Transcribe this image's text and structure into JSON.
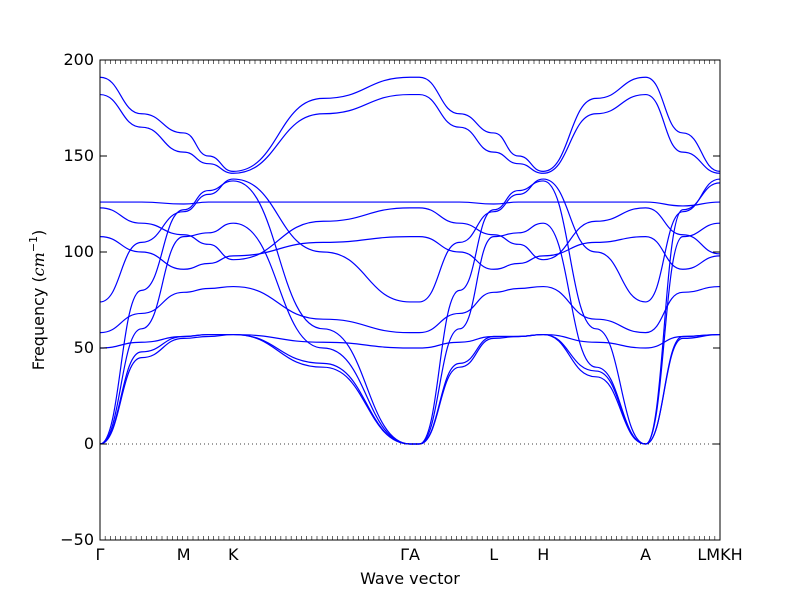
{
  "chart_data": {
    "type": "line",
    "title": "",
    "xlabel": "Wave vector",
    "ylabel": "Frequency (cm⁻¹)",
    "ylabel_parts": {
      "prefix": "Frequency (",
      "unit": "cm",
      "exponent": "−1",
      "suffix": ")"
    },
    "ylim": [
      -50,
      200
    ],
    "yticks": [
      -50,
      0,
      50,
      100,
      150,
      200
    ],
    "ytick_labels": [
      "−50",
      "0",
      "50",
      "100",
      "150",
      "200"
    ],
    "xlim": [
      0,
      1
    ],
    "xticks": [
      {
        "pos": 0.0,
        "label": "Γ"
      },
      {
        "pos": 0.135,
        "label": "M"
      },
      {
        "pos": 0.215,
        "label": "K"
      },
      {
        "pos": 0.5,
        "label": "ΓA"
      },
      {
        "pos": 0.635,
        "label": "L"
      },
      {
        "pos": 0.715,
        "label": "H"
      },
      {
        "pos": 0.88,
        "label": "A"
      },
      {
        "pos": 1.0,
        "label": "LMKH"
      }
    ],
    "zero_line": {
      "y": 0,
      "style": "dotted"
    },
    "line_color": "#0000ff",
    "grid": false,
    "legend": "none",
    "series_points_note_x": [
      0,
      0.067,
      0.135,
      0.175,
      0.215,
      0.36,
      0.5,
      0.515,
      0.58,
      0.635,
      0.675,
      0.715,
      0.8,
      0.88,
      0.94,
      1.0
    ],
    "x_per_segment_samples": [
      0,
      0.135,
      0.215,
      0.5,
      0.635,
      0.715,
      0.88,
      1.0
    ],
    "series": [
      {
        "values": [
          0,
          45,
          55,
          56,
          57,
          40,
          0,
          0,
          40,
          55,
          56,
          57,
          35,
          0,
          55,
          57
        ]
      },
      {
        "values": [
          0,
          48,
          56,
          57,
          57,
          42,
          0,
          0,
          42,
          56,
          56,
          57,
          38,
          0,
          56,
          57
        ]
      },
      {
        "values": [
          50,
          53,
          56,
          57,
          57,
          53,
          50,
          50,
          53,
          56,
          56,
          57,
          53,
          50,
          56,
          57
        ]
      },
      {
        "values": [
          58,
          68,
          79,
          81,
          82,
          65,
          58,
          58,
          68,
          79,
          81,
          82,
          65,
          58,
          79,
          82
        ]
      },
      {
        "values": [
          0,
          60,
          108,
          110,
          115,
          50,
          0,
          0,
          60,
          108,
          110,
          115,
          40,
          0,
          108,
          115
        ]
      },
      {
        "values": [
          74,
          105,
          121,
          130,
          138,
          100,
          74,
          74,
          105,
          121,
          130,
          138,
          100,
          74,
          121,
          138
        ]
      },
      {
        "values": [
          0,
          80,
          122,
          132,
          137,
          60,
          0,
          0,
          80,
          122,
          132,
          137,
          60,
          0,
          122,
          136
        ]
      },
      {
        "values": [
          108,
          100,
          91,
          94,
          98,
          105,
          108,
          108,
          100,
          91,
          94,
          98,
          105,
          108,
          91,
          98
        ]
      },
      {
        "values": [
          123,
          115,
          109,
          104,
          96,
          116,
          123,
          123,
          115,
          109,
          104,
          96,
          116,
          123,
          109,
          99
        ]
      },
      {
        "values": [
          126,
          126,
          125,
          126,
          126,
          126,
          126,
          126,
          126,
          125,
          126,
          126,
          126,
          126,
          124,
          126
        ]
      },
      {
        "values": [
          182,
          165,
          152,
          146,
          141,
          172,
          182,
          182,
          165,
          152,
          146,
          141,
          172,
          182,
          152,
          141
        ]
      },
      {
        "values": [
          191,
          172,
          162,
          150,
          142,
          180,
          191,
          191,
          172,
          162,
          150,
          142,
          180,
          191,
          162,
          142
        ]
      }
    ]
  }
}
